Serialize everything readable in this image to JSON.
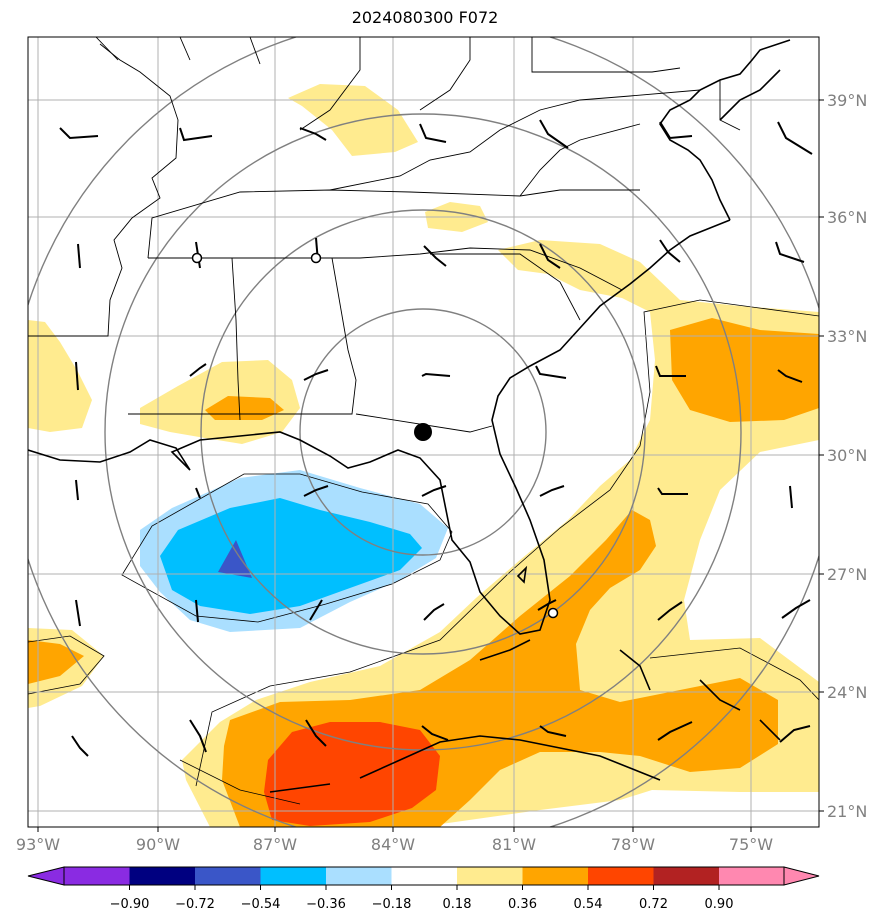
{
  "title": "2024080300 F072",
  "map": {
    "lat_labels": [
      {
        "lat": 39,
        "text": "39°N"
      },
      {
        "lat": 36,
        "text": "36°N"
      },
      {
        "lat": 33,
        "text": "33°N"
      },
      {
        "lat": 30,
        "text": "30°N"
      },
      {
        "lat": 27,
        "text": "27°N"
      },
      {
        "lat": 24,
        "text": "24°N"
      },
      {
        "lat": 21,
        "text": "21°N"
      }
    ],
    "lon_labels": [
      {
        "lon": -93,
        "text": "93°W"
      },
      {
        "lon": -90,
        "text": "90°W"
      },
      {
        "lon": -87,
        "text": "87°W"
      },
      {
        "lon": -84,
        "text": "84°W"
      },
      {
        "lon": -81,
        "text": "81°W"
      },
      {
        "lon": -78,
        "text": "78°W"
      },
      {
        "lon": -75,
        "text": "75°W"
      }
    ],
    "center_marker": {
      "lon": -83.8,
      "lat": 30.5
    },
    "ring_markers": [
      {
        "lon": -88.9,
        "lat": 35.0
      },
      {
        "lon": -85.9,
        "lat": 35.0
      },
      {
        "lon": -80.1,
        "lat": 26.1
      }
    ]
  },
  "colorbar": {
    "colors": [
      "#8a2be2",
      "#000080",
      "#3a56c8",
      "#00bfff",
      "#aadfff",
      "#ffffff",
      "#ffeb8f",
      "#ffa500",
      "#ff4500",
      "#b22222",
      "#ff88b0"
    ],
    "tick_labels": [
      "−0.90",
      "−0.72",
      "−0.54",
      "−0.36",
      "−0.18",
      "0.18",
      "0.36",
      "0.54",
      "0.72",
      "0.90"
    ]
  },
  "legend_colors": {
    "pos1": "#ffeb8f",
    "pos2": "#ffa500",
    "pos3": "#ff4500",
    "neg1": "#aadfff",
    "neg2": "#00bfff",
    "neg3": "#3a56c8"
  }
}
